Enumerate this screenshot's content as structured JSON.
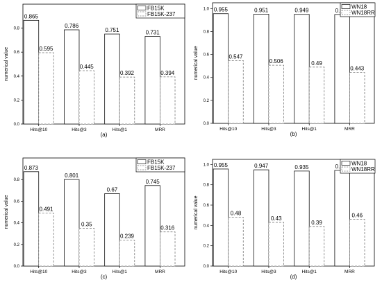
{
  "chart_data": [
    {
      "type": "bar",
      "caption": "(a)",
      "categories": [
        "Hits@10",
        "Hits@3",
        "Hits@1",
        "MRR"
      ],
      "series": [
        {
          "name": "FB15K",
          "values": [
            0.865,
            0.786,
            0.751,
            0.731
          ],
          "labels": [
            "0.865",
            "0.786",
            "0.751",
            "0.731"
          ],
          "style": "solid"
        },
        {
          "name": "FB15K-237",
          "values": [
            0.595,
            0.445,
            0.392,
            0.394
          ],
          "labels": [
            "0.595",
            "0.445",
            "0.392",
            "0.394"
          ],
          "style": "dashed"
        }
      ],
      "ylabel": "numerical value",
      "ylim": [
        0,
        1.0
      ],
      "yticks": [
        0.0,
        0.2,
        0.4,
        0.6,
        0.8
      ],
      "ytick_labels": [
        "0.0",
        "0.2",
        "0.4",
        "0.6",
        "0.8"
      ],
      "legend": "top-right",
      "grid": false
    },
    {
      "type": "bar",
      "caption": "(b)",
      "categories": [
        "Hits@10",
        "Hits@3",
        "Hits@1",
        "MRR"
      ],
      "series": [
        {
          "name": "WN18",
          "values": [
            0.955,
            0.951,
            0.949,
            0.948
          ],
          "labels": [
            "0.955",
            "0.951",
            "0.949",
            "0.948"
          ],
          "style": "solid"
        },
        {
          "name": "WN18RR",
          "values": [
            0.547,
            0.506,
            0.49,
            0.443
          ],
          "labels": [
            "0.547",
            "0.506",
            "0.49",
            "0.443"
          ],
          "style": "dashed"
        }
      ],
      "ylabel": "numerical value",
      "ylim": [
        0,
        1.05
      ],
      "yticks": [
        0.0,
        0.2,
        0.4,
        0.6,
        0.8,
        1.0
      ],
      "ytick_labels": [
        "0.0",
        "0.2",
        "0.4",
        "0.6",
        "0.8",
        "1.0"
      ],
      "legend": "top-right",
      "grid": false
    },
    {
      "type": "bar",
      "caption": "(c)",
      "categories": [
        "Hits@10",
        "Hits@3",
        "Hits@1",
        "MRR"
      ],
      "series": [
        {
          "name": "FB15K",
          "values": [
            0.873,
            0.801,
            0.67,
            0.745
          ],
          "labels": [
            "0.873",
            "0.801",
            "0.67",
            "0.745"
          ],
          "style": "solid"
        },
        {
          "name": "FB15K-237",
          "values": [
            0.491,
            0.35,
            0.239,
            0.316
          ],
          "labels": [
            "0.491",
            "0.35",
            "0.239",
            "0.316"
          ],
          "style": "dashed"
        }
      ],
      "ylabel": "numerical value",
      "ylim": [
        0,
        1.0
      ],
      "yticks": [
        0.0,
        0.2,
        0.4,
        0.6,
        0.8
      ],
      "ytick_labels": [
        "0.0",
        "0.2",
        "0.4",
        "0.6",
        "0.8"
      ],
      "legend": "top-right",
      "grid": false
    },
    {
      "type": "bar",
      "caption": "(d)",
      "categories": [
        "Hits@10",
        "Hits@3",
        "Hits@1",
        "MRR"
      ],
      "series": [
        {
          "name": "WN18",
          "values": [
            0.955,
            0.947,
            0.935,
            0.942
          ],
          "labels": [
            "0.955",
            "0.947",
            "0.935",
            "0.942"
          ],
          "style": "solid"
        },
        {
          "name": "WN18RR",
          "values": [
            0.48,
            0.43,
            0.39,
            0.46
          ],
          "labels": [
            "0.48",
            "0.43",
            "0.39",
            "0.46"
          ],
          "style": "dashed"
        }
      ],
      "ylabel": "numerical value",
      "ylim": [
        0,
        1.05
      ],
      "yticks": [
        0.0,
        0.2,
        0.4,
        0.6,
        0.8,
        1.0
      ],
      "ytick_labels": [
        "0.0",
        "0.2",
        "0.4",
        "0.6",
        "0.8",
        "1.0"
      ],
      "legend": "top-right",
      "grid": false
    }
  ]
}
